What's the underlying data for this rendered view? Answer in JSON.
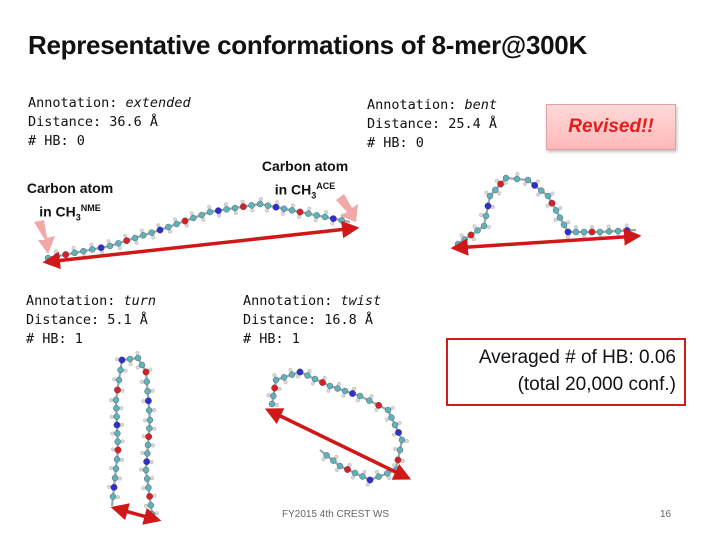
{
  "title": "Representative conformations of 8-mer@300K",
  "label_annotation": "Annotation: ",
  "label_distance": "Distance: ",
  "label_hb": "# HB: ",
  "conformations": [
    {
      "annotation": "extended",
      "distance": "36.6 Å",
      "hb": "0"
    },
    {
      "annotation": "bent",
      "distance": "25.4 Å",
      "hb": "0"
    },
    {
      "annotation": "turn",
      "distance": "5.1 Å",
      "hb": "1"
    },
    {
      "annotation": "twist",
      "distance": "16.8 Å",
      "hb": "1"
    }
  ],
  "carbon_nme": {
    "line1": "Carbon atom",
    "prefix": "in CH",
    "sub": "3",
    "sup": "NME"
  },
  "carbon_ace": {
    "line1": "Carbon atom",
    "prefix": "in CH",
    "sub": "3",
    "sup": "ACE"
  },
  "revised": "Revised!!",
  "averaged": {
    "line1": "Averaged # of HB: 0.06",
    "line2": "(total 20,000 conf.)"
  },
  "footer": "FY2015 4th CREST WS",
  "page_number": "16",
  "colors": {
    "arrow": "#d01818",
    "pointer": "#f2a8a8",
    "atom_c": "#5fb3b3",
    "atom_n": "#3030c8",
    "atom_o": "#d82020",
    "atom_h": "#d8d8d8"
  }
}
